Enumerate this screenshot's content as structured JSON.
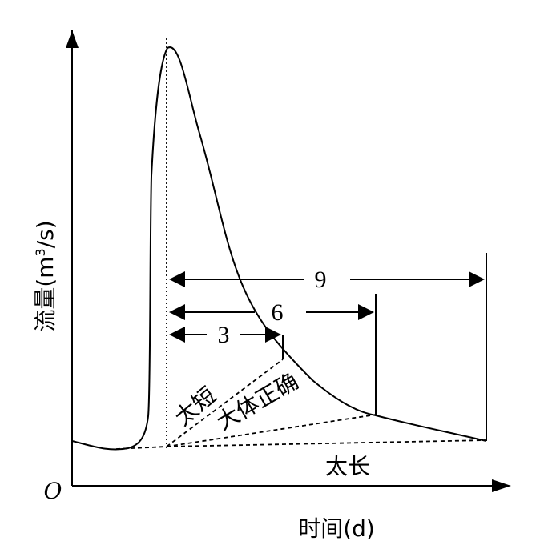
{
  "axes": {
    "origin_label": "O",
    "x_label": "时间(d)",
    "y_label_main": "流量(m",
    "y_label_sup": "3",
    "y_label_end": "/s)"
  },
  "intervals": [
    {
      "label": "9"
    },
    {
      "label": "6"
    },
    {
      "label": "3"
    }
  ],
  "separation_lines": [
    {
      "label": "太短"
    },
    {
      "label": "大体正确"
    },
    {
      "label": "太长"
    }
  ]
}
